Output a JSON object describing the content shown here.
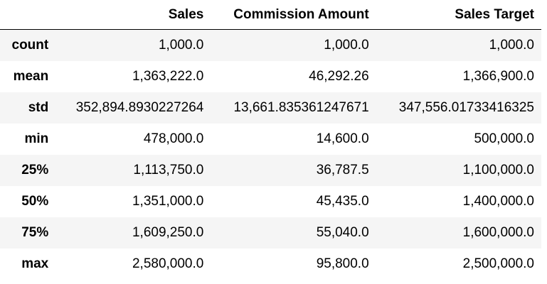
{
  "table": {
    "columns": [
      "",
      "Sales",
      "Commission Amount",
      "Sales Target"
    ],
    "rows": [
      {
        "label": "count",
        "values": [
          "1,000.0",
          "1,000.0",
          "1,000.0"
        ]
      },
      {
        "label": "mean",
        "values": [
          "1,363,222.0",
          "46,292.26",
          "1,366,900.0"
        ]
      },
      {
        "label": "std",
        "values": [
          "352,894.8930227264",
          "13,661.835361247671",
          "347,556.01733416325"
        ]
      },
      {
        "label": "min",
        "values": [
          "478,000.0",
          "14,600.0",
          "500,000.0"
        ]
      },
      {
        "label": "25%",
        "values": [
          "1,113,750.0",
          "36,787.5",
          "1,100,000.0"
        ]
      },
      {
        "label": "50%",
        "values": [
          "1,351,000.0",
          "45,435.0",
          "1,400,000.0"
        ]
      },
      {
        "label": "75%",
        "values": [
          "1,609,250.0",
          "55,040.0",
          "1,600,000.0"
        ]
      },
      {
        "label": "max",
        "values": [
          "2,580,000.0",
          "95,800.0",
          "2,500,000.0"
        ]
      }
    ]
  }
}
